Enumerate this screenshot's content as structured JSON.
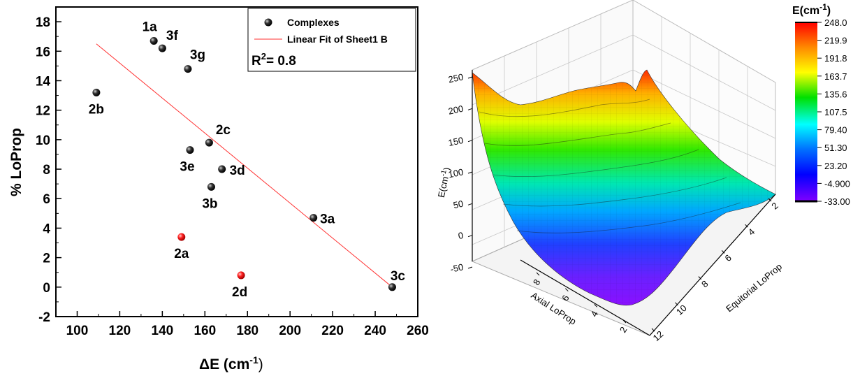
{
  "chart_data": [
    {
      "type": "scatter",
      "xlabel": "ΔE (cm",
      "xlabel_sup": "-1",
      "xlabel_end": ")",
      "ylabel": "% LoProp",
      "xlim": [
        90,
        260
      ],
      "ylim": [
        -2,
        19
      ],
      "x_ticks": [
        "100",
        "120",
        "140",
        "160",
        "180",
        "200",
        "220",
        "240",
        "260"
      ],
      "y_ticks": [
        "-2",
        "0",
        "2",
        "4",
        "6",
        "8",
        "10",
        "12",
        "14",
        "16",
        "18"
      ],
      "series": [
        {
          "name": "Complexes",
          "points": [
            {
              "label": "1a",
              "x": 136,
              "y": 16.7,
              "color": "black"
            },
            {
              "label": "3f",
              "x": 140,
              "y": 16.2,
              "color": "black"
            },
            {
              "label": "3g",
              "x": 152,
              "y": 14.8,
              "color": "black"
            },
            {
              "label": "2b",
              "x": 109,
              "y": 13.2,
              "color": "black"
            },
            {
              "label": "2c",
              "x": 162,
              "y": 9.8,
              "color": "black"
            },
            {
              "label": "3e",
              "x": 153,
              "y": 9.3,
              "color": "black"
            },
            {
              "label": "3d",
              "x": 168,
              "y": 8.0,
              "color": "black"
            },
            {
              "label": "3b",
              "x": 163,
              "y": 6.8,
              "color": "black"
            },
            {
              "label": "3a",
              "x": 211,
              "y": 4.7,
              "color": "black"
            },
            {
              "label": "2a",
              "x": 149,
              "y": 3.4,
              "color": "red"
            },
            {
              "label": "2d",
              "x": 177,
              "y": 0.8,
              "color": "red"
            },
            {
              "label": "3c",
              "x": 248,
              "y": 0.0,
              "color": "black"
            }
          ]
        },
        {
          "name": "Linear Fit of Sheet1 B",
          "type": "line",
          "points": [
            {
              "x": 109,
              "y": 16.5
            },
            {
              "x": 248,
              "y": 0.0
            }
          ]
        }
      ],
      "legend_position": "top-right",
      "annotation": {
        "prefix": "R",
        "sup": "2",
        "suffix": "= 0.8"
      }
    },
    {
      "type": "surface",
      "zlabel": "E(cm",
      "zlabel_sup": "-1",
      "zlabel_end": ")",
      "xlabel": "Axial LoProp",
      "ylabel": "Equitorial LoProp",
      "z_ticks": [
        "-50",
        "0",
        "50",
        "100",
        "150",
        "200",
        "250"
      ],
      "axial_ticks": [
        "8",
        "6",
        "4",
        "2"
      ],
      "equatorial_ticks": [
        "2",
        "4",
        "6",
        "8",
        "10",
        "12"
      ],
      "colorbar": {
        "title": "E(cm",
        "title_sup": "-1",
        "title_end": ")",
        "ticks": [
          "248.0",
          "219.9",
          "191.8",
          "163.7",
          "135.6",
          "107.5",
          "79.40",
          "51.30",
          "23.20",
          "-4.900",
          "-33.00"
        ],
        "colors": [
          "#ff0000",
          "#ff8a00",
          "#ffff00",
          "#00e000",
          "#00ffff",
          "#0070ff",
          "#0000ff",
          "#8000ff"
        ]
      }
    }
  ]
}
